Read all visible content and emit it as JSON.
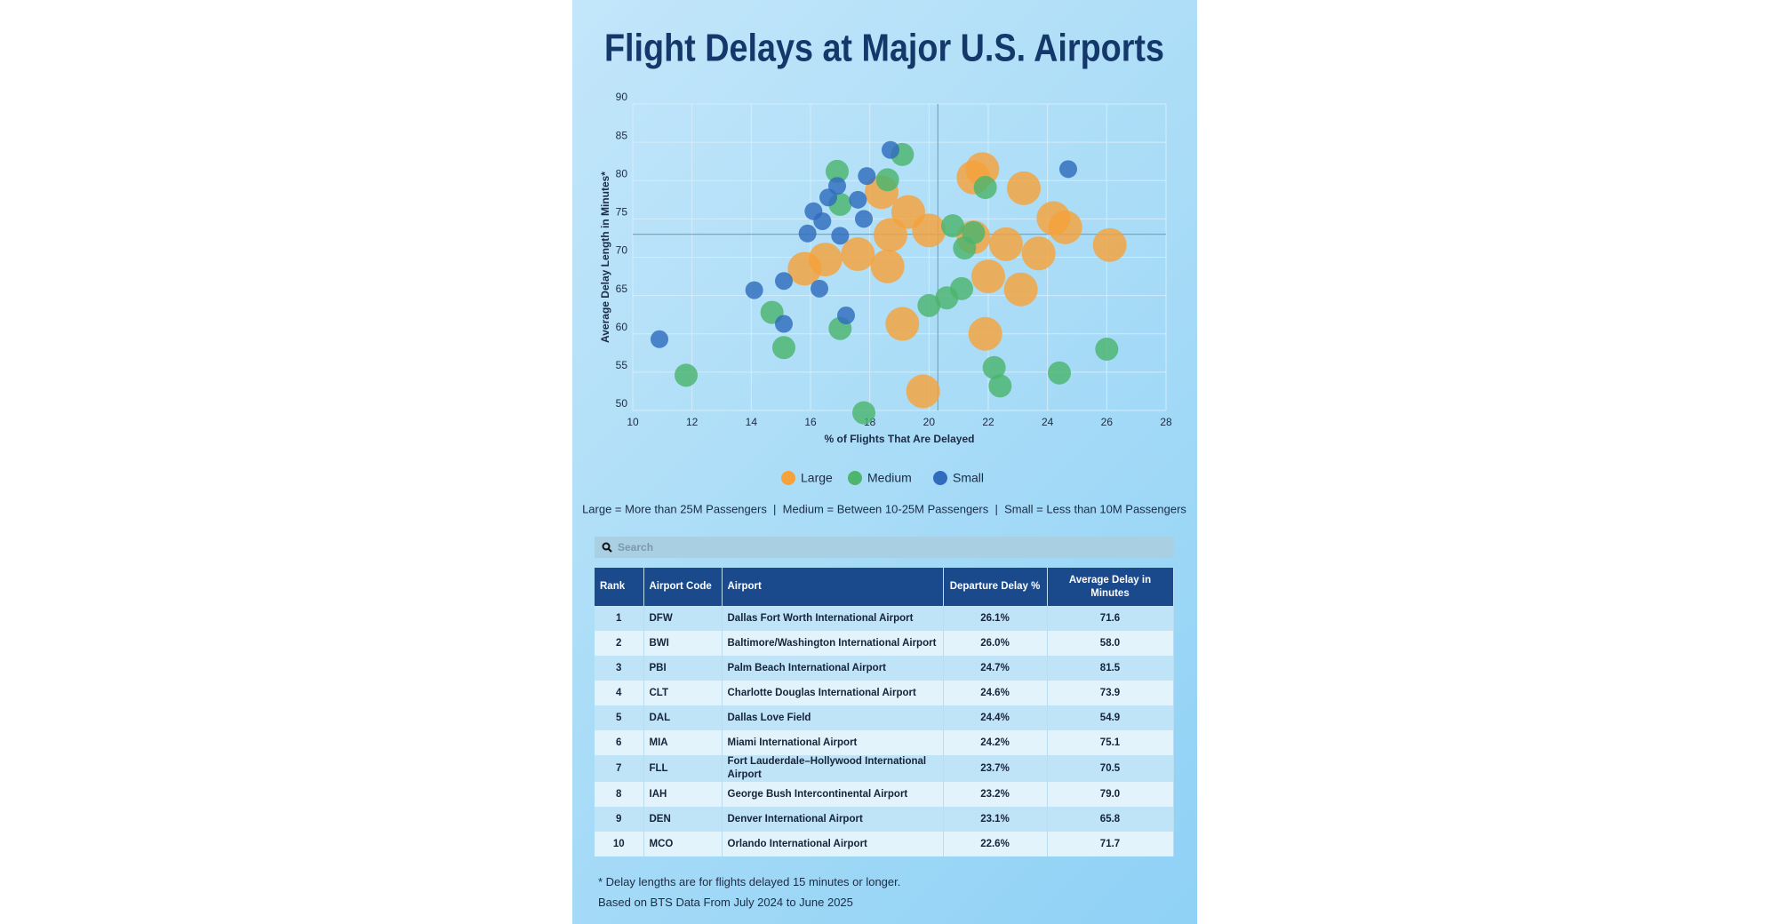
{
  "chart_data": {
    "type": "scatter",
    "title": "Flight Delays at Major U.S. Airports",
    "x_label": "% of Flights That Are Delayed",
    "y_label": "Average Delay Length in Minutes*",
    "xlim": [
      10,
      28
    ],
    "xticks": [
      10,
      12,
      14,
      16,
      18,
      20,
      22,
      24,
      26,
      28
    ],
    "ylim": [
      50,
      90
    ],
    "yticks": [
      50,
      55,
      60,
      65,
      70,
      75,
      80,
      85,
      90
    ],
    "grid": true,
    "x_reference": 20.3,
    "y_reference": 73.0,
    "series": [
      {
        "name": "Large",
        "color": "#f5a23a",
        "x": [
          26.1,
          24.6,
          24.2,
          23.7,
          23.2,
          23.1,
          22.6,
          21.8,
          21.5,
          22.0,
          21.9,
          21.5,
          20.0,
          19.3,
          18.4,
          18.7,
          18.6,
          19.1,
          19.8,
          17.6,
          16.5,
          15.8
        ],
        "values": [
          71.6,
          73.9,
          75.1,
          70.5,
          79.0,
          65.8,
          71.7,
          81.5,
          80.4,
          67.5,
          60.0,
          72.6,
          73.5,
          75.9,
          78.5,
          72.9,
          68.8,
          61.3,
          52.5,
          70.4,
          69.7,
          68.5
        ]
      },
      {
        "name": "Medium",
        "color": "#4cb56e",
        "x": [
          26.0,
          24.4,
          22.4,
          22.2,
          21.9,
          21.1,
          20.6,
          20.0,
          21.2,
          21.5,
          20.8,
          19.1,
          18.6,
          16.9,
          17.0,
          17.0,
          17.8,
          14.7,
          15.1,
          11.8
        ],
        "values": [
          58.0,
          54.9,
          53.2,
          55.6,
          79.1,
          65.9,
          64.7,
          63.7,
          71.2,
          73.2,
          74.1,
          83.4,
          80.1,
          81.2,
          76.9,
          60.7,
          49.7,
          62.8,
          58.2,
          54.6
        ]
      },
      {
        "name": "Small",
        "color": "#2f6cbd",
        "x": [
          24.7,
          18.7,
          17.9,
          16.9,
          16.6,
          17.6,
          17.8,
          16.1,
          16.4,
          15.9,
          17.0,
          15.1,
          14.1,
          16.3,
          17.2,
          15.1,
          10.9
        ],
        "values": [
          81.5,
          84.0,
          80.6,
          79.3,
          77.8,
          77.5,
          75.0,
          76.0,
          74.7,
          73.1,
          72.8,
          66.9,
          65.7,
          65.9,
          62.4,
          61.3,
          59.3
        ]
      }
    ],
    "size_note": "Large = More than 25M Passengers  |  Medium = Between 10-25M Passengers  |  Small = Less than 10M Passengers"
  },
  "search_placeholder": "Search",
  "table": {
    "columns": [
      "Rank",
      "Airport Code",
      "Airport",
      "Departure Delay %",
      "Average Delay in Minutes"
    ],
    "rows": [
      [
        "1",
        "DFW",
        "Dallas Fort Worth International Airport",
        "26.1%",
        "71.6"
      ],
      [
        "2",
        "BWI",
        "Baltimore/Washington International Airport",
        "26.0%",
        "58.0"
      ],
      [
        "3",
        "PBI",
        "Palm Beach International Airport",
        "24.7%",
        "81.5"
      ],
      [
        "4",
        "CLT",
        "Charlotte Douglas International Airport",
        "24.6%",
        "73.9"
      ],
      [
        "5",
        "DAL",
        "Dallas Love Field",
        "24.4%",
        "54.9"
      ],
      [
        "6",
        "MIA",
        "Miami International Airport",
        "24.2%",
        "75.1"
      ],
      [
        "7",
        "FLL",
        "Fort Lauderdale–Hollywood International Airport",
        "23.7%",
        "70.5"
      ],
      [
        "8",
        "IAH",
        "George Bush Intercontinental Airport",
        "23.2%",
        "79.0"
      ],
      [
        "9",
        "DEN",
        "Denver International Airport",
        "23.1%",
        "65.8"
      ],
      [
        "10",
        "MCO",
        "Orlando International Airport",
        "22.6%",
        "71.7"
      ]
    ]
  },
  "footnotes": [
    "* Delay lengths are for flights delayed 15 minutes or longer.",
    "Based on BTS Data From July 2024 to June 2025"
  ]
}
